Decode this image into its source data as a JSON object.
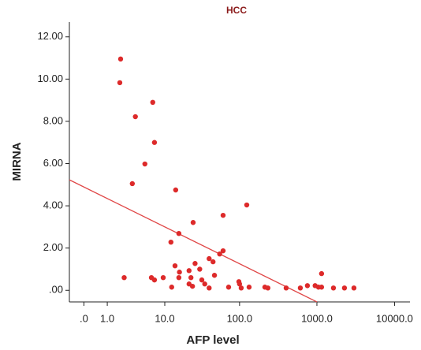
{
  "chart_data": {
    "type": "scatter",
    "title": "HCC",
    "x_label": "AFP level",
    "y_label": "MIRNA",
    "xscale": "log1p",
    "color": "#dd2a2a",
    "line_color": "#e04848",
    "xlim": [
      -0.35,
      15800
    ],
    "ylim": [
      -0.55,
      12.7
    ],
    "xticks": [
      {
        "value": 0,
        "label": ".0"
      },
      {
        "value": 1,
        "label": "1.0"
      },
      {
        "value": 10,
        "label": "10.0"
      },
      {
        "value": 100,
        "label": "100.0"
      },
      {
        "value": 1000,
        "label": "1000.0"
      },
      {
        "value": 10000,
        "label": "10000.0"
      }
    ],
    "yticks": [
      {
        "value": 0,
        "label": ".00"
      },
      {
        "value": 2,
        "label": "2.00"
      },
      {
        "value": 4,
        "label": "4.00"
      },
      {
        "value": 6,
        "label": "6.00"
      },
      {
        "value": 8,
        "label": "8.00"
      },
      {
        "value": 10,
        "label": "10.00"
      },
      {
        "value": 12,
        "label": "12.00"
      }
    ],
    "x": [
      1.97,
      1.9,
      3.6,
      6.7,
      7.1,
      5.1,
      3.2,
      14.2,
      15.7,
      24.5,
      12.2,
      61,
      124,
      61,
      55,
      40,
      45,
      47,
      13.9,
      26,
      30,
      21.6,
      16,
      22.9,
      32,
      9.5,
      6.4,
      7.1,
      2.3,
      15.7,
      21.6,
      24,
      12.5,
      35,
      40,
      72,
      100,
      98,
      105,
      133,
      213,
      233,
      401,
      611,
      754,
      948,
      1047,
      1148,
      1148,
      1633,
      2264,
      3000
    ],
    "y": [
      10.95,
      9.83,
      8.22,
      8.9,
      7.0,
      5.98,
      5.05,
      4.75,
      2.69,
      3.21,
      2.28,
      3.55,
      4.04,
      1.87,
      1.72,
      1.5,
      1.35,
      0.71,
      1.16,
      1.27,
      1.0,
      0.93,
      0.86,
      0.6,
      0.49,
      0.6,
      0.6,
      0.49,
      0.6,
      0.6,
      0.3,
      0.19,
      0.15,
      0.3,
      0.11,
      0.15,
      0.3,
      0.41,
      0.11,
      0.15,
      0.15,
      0.11,
      0.11,
      0.11,
      0.22,
      0.22,
      0.15,
      0.79,
      0.15,
      0.11,
      0.11,
      0.11
    ],
    "fit_line": {
      "x": [
        -0.35,
        1000
      ],
      "y": [
        5.23,
        -0.55
      ]
    }
  }
}
